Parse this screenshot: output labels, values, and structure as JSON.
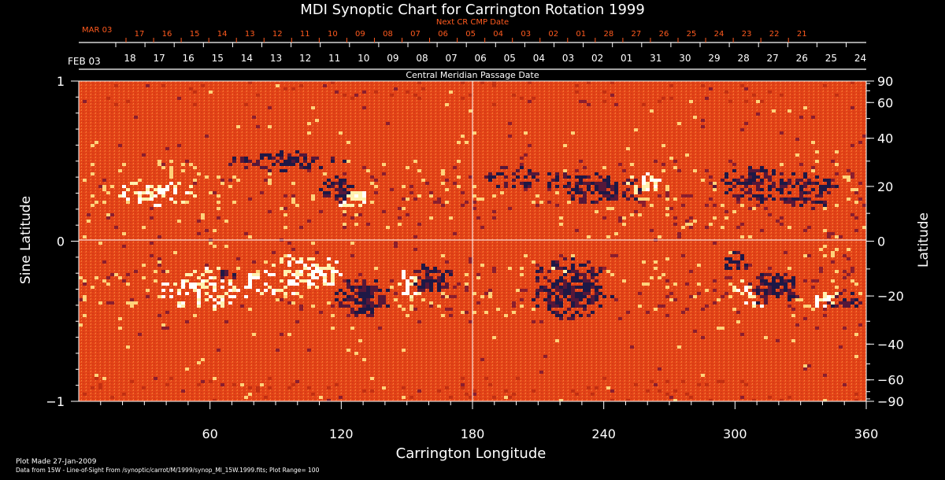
{
  "chart_data": {
    "type": "heatmap",
    "title": "MDI Synoptic Chart for Carrington Rotation 1999",
    "xlabel": "Carrington Longitude",
    "ylabel_left": "Sine Latitude",
    "ylabel_right": "Latitude",
    "xlim": [
      0,
      360
    ],
    "ylim": [
      -1,
      1
    ],
    "x_ticks": [
      60,
      120,
      180,
      240,
      300,
      360
    ],
    "y_left_ticks": [
      {
        "value": 1,
        "label": "1"
      },
      {
        "value": 0,
        "label": "0"
      },
      {
        "value": -1,
        "label": "−1"
      }
    ],
    "y_right_ticks": [
      90,
      60,
      40,
      20,
      0,
      -20,
      -40,
      -60,
      -90
    ],
    "y_right_labels": [
      "90",
      "60",
      "40",
      "20",
      "0",
      "−20",
      "−40",
      "−60",
      "−90"
    ],
    "top_axis_title": "Central Meridian Passage Date",
    "top_axis_start_label": "FEB 03",
    "top_axis_dates": [
      "18",
      "17",
      "16",
      "15",
      "14",
      "13",
      "12",
      "11",
      "10",
      "09",
      "08",
      "07",
      "06",
      "05",
      "04",
      "03",
      "02",
      "01",
      "31",
      "30",
      "29",
      "28",
      "27",
      "26",
      "25",
      "24"
    ],
    "next_axis_title": "Next CR CMP Date",
    "next_axis_start_label": "MAR 03",
    "next_axis_dates": [
      "17",
      "16",
      "15",
      "14",
      "13",
      "12",
      "11",
      "10",
      "09",
      "08",
      "07",
      "06",
      "05",
      "04",
      "03",
      "02",
      "01",
      "28",
      "27",
      "26",
      "25",
      "24",
      "23",
      "22",
      "21"
    ],
    "gridlines": {
      "vertical_at": 180,
      "horizontal_at": 0
    },
    "plot_range": 100,
    "colors": {
      "background_field": "#e8461a",
      "positive_polarity": "#fff2b0",
      "negative_polarity": "#1e1846",
      "text_primary": "#ffffff",
      "text_secondary": "#ff5a1e"
    },
    "magnetic_regions": [
      {
        "lon": 125,
        "sinlat": 0.28,
        "polarity": "positive",
        "strength": 1.0,
        "spread_lon": 6,
        "spread_sinlat": 0.05
      },
      {
        "lon": 118,
        "sinlat": 0.32,
        "polarity": "negative",
        "strength": 0.9,
        "spread_lon": 5,
        "spread_sinlat": 0.05
      },
      {
        "lon": 162,
        "sinlat": -0.23,
        "polarity": "negative",
        "strength": 1.0,
        "spread_lon": 6,
        "spread_sinlat": 0.06
      },
      {
        "lon": 153,
        "sinlat": -0.26,
        "polarity": "positive",
        "strength": 0.8,
        "spread_lon": 5,
        "spread_sinlat": 0.06
      },
      {
        "lon": 130,
        "sinlat": -0.35,
        "polarity": "negative",
        "strength": 0.9,
        "spread_lon": 8,
        "spread_sinlat": 0.08
      },
      {
        "lon": 220,
        "sinlat": -0.18,
        "polarity": "positive",
        "strength": 0.8,
        "spread_lon": 5,
        "spread_sinlat": 0.05
      },
      {
        "lon": 225,
        "sinlat": -0.3,
        "polarity": "negative",
        "strength": 1.0,
        "spread_lon": 12,
        "spread_sinlat": 0.12
      },
      {
        "lon": 240,
        "sinlat": 0.32,
        "polarity": "negative",
        "strength": 0.8,
        "spread_lon": 12,
        "spread_sinlat": 0.07
      },
      {
        "lon": 255,
        "sinlat": 0.35,
        "polarity": "positive",
        "strength": 0.7,
        "spread_lon": 8,
        "spread_sinlat": 0.06
      },
      {
        "lon": 300,
        "sinlat": -0.13,
        "polarity": "negative",
        "strength": 0.8,
        "spread_lon": 4,
        "spread_sinlat": 0.04
      },
      {
        "lon": 310,
        "sinlat": -0.32,
        "polarity": "positive",
        "strength": 0.8,
        "spread_lon": 8,
        "spread_sinlat": 0.06
      },
      {
        "lon": 318,
        "sinlat": -0.3,
        "polarity": "negative",
        "strength": 0.9,
        "spread_lon": 8,
        "spread_sinlat": 0.07
      },
      {
        "lon": 342,
        "sinlat": -0.36,
        "polarity": "positive",
        "strength": 0.9,
        "spread_lon": 5,
        "spread_sinlat": 0.04
      },
      {
        "lon": 350,
        "sinlat": -0.37,
        "polarity": "negative",
        "strength": 0.8,
        "spread_lon": 5,
        "spread_sinlat": 0.04
      },
      {
        "lon": 68,
        "sinlat": -0.2,
        "polarity": "negative",
        "strength": 0.7,
        "spread_lon": 3,
        "spread_sinlat": 0.03
      },
      {
        "lon": 36,
        "sinlat": 0.3,
        "polarity": "positive",
        "strength": 0.6,
        "spread_lon": 14,
        "spread_sinlat": 0.06
      },
      {
        "lon": 60,
        "sinlat": -0.3,
        "polarity": "positive",
        "strength": 0.6,
        "spread_lon": 18,
        "spread_sinlat": 0.1
      },
      {
        "lon": 95,
        "sinlat": 0.5,
        "polarity": "negative",
        "strength": 0.55,
        "spread_lon": 22,
        "spread_sinlat": 0.05
      },
      {
        "lon": 310,
        "sinlat": 0.35,
        "polarity": "negative",
        "strength": 0.65,
        "spread_lon": 14,
        "spread_sinlat": 0.08
      },
      {
        "lon": 335,
        "sinlat": 0.3,
        "polarity": "negative",
        "strength": 0.55,
        "spread_lon": 10,
        "spread_sinlat": 0.08
      },
      {
        "lon": 105,
        "sinlat": -0.2,
        "polarity": "positive",
        "strength": 0.6,
        "spread_lon": 12,
        "spread_sinlat": 0.1
      },
      {
        "lon": 200,
        "sinlat": 0.4,
        "polarity": "negative",
        "strength": 0.5,
        "spread_lon": 15,
        "spread_sinlat": 0.06
      }
    ]
  },
  "footer": {
    "plot_made": "Plot Made 27-Jan-2009",
    "data_source": "Data from 15W - Line-of-Sight From /synoptic/carrot/M/1999/synop_Ml_15W.1999.fits; Plot Range=  100"
  }
}
